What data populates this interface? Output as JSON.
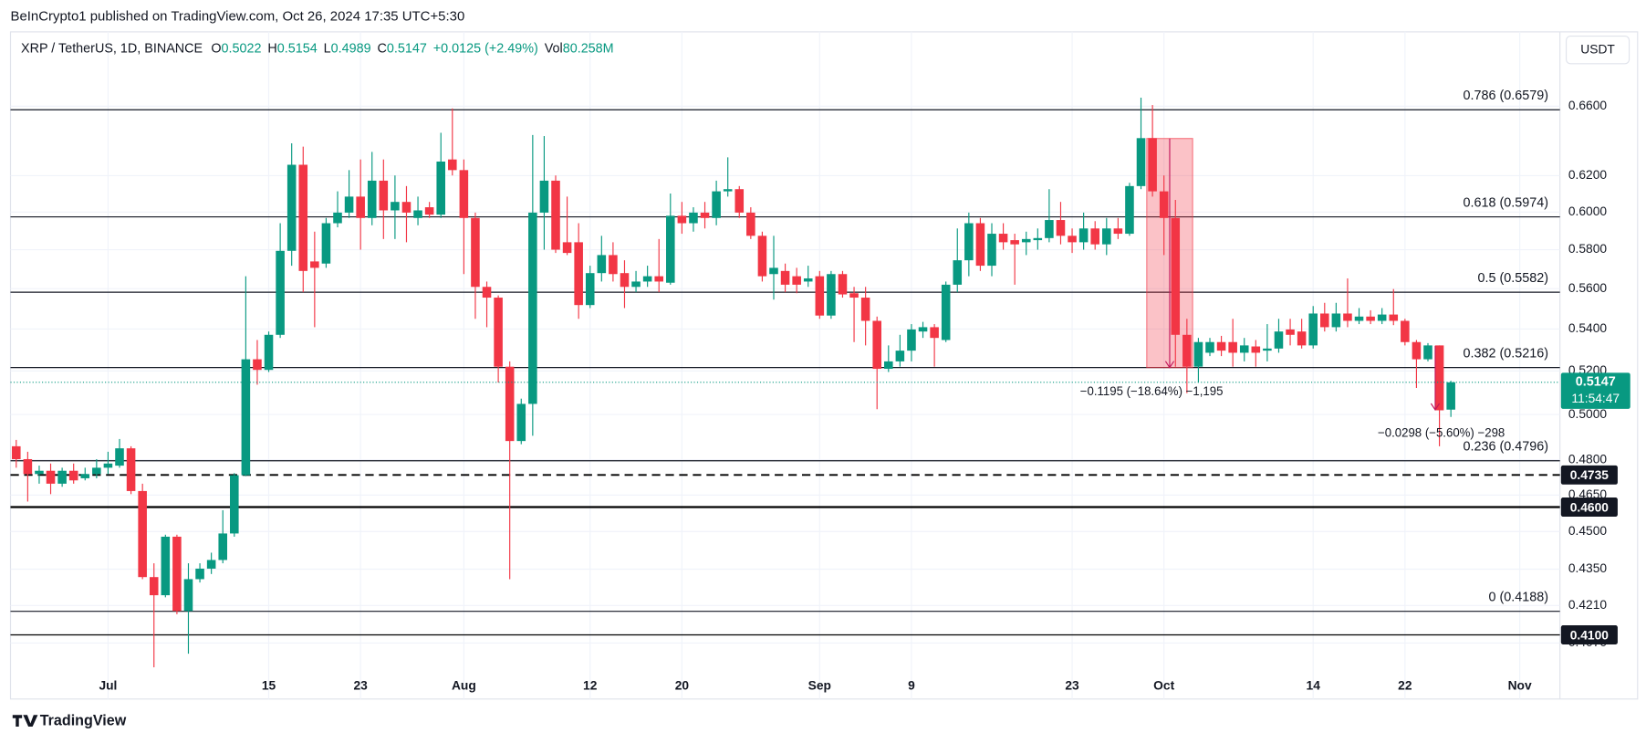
{
  "header": {
    "publisher": "BeInCrypto1 published on TradingView.com, Oct 26, 2024 17:35 UTC+5:30"
  },
  "chart_data": {
    "type": "candlestick",
    "title": "XRP / TetherUS, 1D, BINANCE",
    "legend_labels": {
      "open": "O",
      "high": "H",
      "low": "L",
      "close": "C",
      "volume": "Vol"
    },
    "change": "+0.0125 (+2.49%)",
    "volume": "80.258M",
    "currency": "USDT",
    "countdown": "11:54:47",
    "categories": [
      null,
      null,
      null,
      null,
      null,
      null,
      null,
      null,
      "Jul",
      null,
      null,
      null,
      null,
      null,
      null,
      null,
      null,
      null,
      null,
      null,
      null,
      null,
      "15",
      null,
      null,
      null,
      null,
      null,
      null,
      null,
      "23",
      null,
      null,
      null,
      null,
      null,
      null,
      null,
      null,
      "Aug",
      null,
      null,
      null,
      null,
      null,
      null,
      null,
      null,
      null,
      null,
      "12",
      null,
      null,
      null,
      null,
      null,
      null,
      null,
      "20",
      null,
      null,
      null,
      null,
      null,
      null,
      null,
      null,
      null,
      null,
      null,
      "Sep",
      null,
      null,
      null,
      null,
      null,
      null,
      null,
      "9",
      null,
      null,
      null,
      null,
      null,
      null,
      null,
      null,
      null,
      null,
      null,
      null,
      null,
      "23",
      null,
      null,
      null,
      null,
      null,
      null,
      null,
      "Oct",
      null,
      null,
      null,
      null,
      null,
      null,
      null,
      null,
      null,
      null,
      null,
      null,
      "14",
      null,
      null,
      null,
      null,
      null,
      null,
      null,
      "22",
      null,
      null,
      null,
      null,
      null,
      null,
      null,
      null,
      null,
      "Nov",
      null,
      null,
      null
    ],
    "open": [
      0.4859,
      0.4803,
      0.4739,
      0.4753,
      0.4698,
      0.4753,
      0.4721,
      0.4739,
      0.4766,
      0.4775,
      0.485,
      0.4667,
      0.4319,
      0.4249,
      0.4479,
      0.4189,
      0.4311,
      0.4352,
      0.4386,
      0.4492,
      0.4734,
      0.5255,
      0.5205,
      0.5372,
      0.5794,
      0.6261,
      0.5739,
      0.5728,
      0.594,
      0.5997,
      0.6084,
      0.5968,
      0.6172,
      0.6009,
      0.6055,
      0.5968,
      0.6026,
      0.5986,
      0.6291,
      0.6231,
      0.5968,
      0.5609,
      0.5555,
      0.522,
      0.4882,
      0.5048,
      0.5997,
      0.6172,
      0.5839,
      0.5839,
      0.5518,
      0.5679,
      0.5772,
      0.5679,
      0.5609,
      0.5636,
      0.5663,
      0.563,
      0.598,
      0.594,
      0.5997,
      0.5968,
      0.6113,
      0.6125,
      0.5997,
      0.5873,
      0.5674,
      0.569,
      0.5663,
      0.5636,
      0.5663,
      0.5466,
      0.5674,
      0.5577,
      0.5555,
      0.544,
      0.521,
      0.5245,
      0.5296,
      0.5388,
      0.5409,
      0.5347,
      0.562,
      0.5745,
      0.594,
      0.5717,
      0.5884,
      0.585,
      0.5839,
      0.585,
      0.5861,
      0.5957,
      0.5873,
      0.5839,
      0.5912,
      0.5828,
      0.5912,
      0.5884,
      0.6142,
      0.6413,
      0.6113,
      0.5968,
      0.5372,
      0.522,
      0.5286,
      0.5337,
      0.5337,
      0.5286,
      0.5316,
      0.5296,
      0.5306,
      0.5398,
      0.5388,
      0.5321,
      0.5476,
      0.5409,
      0.5476,
      0.544,
      0.5461,
      0.544,
      0.5471,
      0.544,
      0.5337,
      0.5255,
      0.5321,
      0.5022,
      null,
      null,
      null,
      null,
      null,
      null,
      null,
      null,
      null
    ],
    "high": [
      0.4887,
      0.4835,
      0.4775,
      0.4784,
      0.4766,
      0.4784,
      0.4766,
      0.4803,
      0.4835,
      0.4891,
      0.4859,
      0.4698,
      0.4373,
      0.4487,
      0.4487,
      0.4373,
      0.4373,
      0.4415,
      0.4587,
      0.4743,
      0.5663,
      0.5347,
      0.5388,
      0.594,
      0.6383,
      0.6364,
      0.5895,
      0.5968,
      0.6113,
      0.6231,
      0.6291,
      0.6334,
      0.6291,
      0.6201,
      0.6142,
      0.6084,
      0.6055,
      0.6444,
      0.6587,
      0.6291,
      0.5997,
      0.5636,
      0.5566,
      0.5245,
      0.5072,
      0.6431,
      0.6425,
      0.6201,
      0.6084,
      0.594,
      0.5717,
      0.5873,
      0.5839,
      0.5745,
      0.569,
      0.5717,
      0.5856,
      0.6101,
      0.6055,
      0.6026,
      0.6055,
      0.6172,
      0.6303,
      0.6142,
      0.6026,
      0.5895,
      0.5873,
      0.5728,
      0.5706,
      0.5717,
      0.569,
      0.569,
      0.569,
      0.5609,
      0.5609,
      0.5461,
      0.5321,
      0.5372,
      0.5424,
      0.5435,
      0.5424,
      0.5636,
      0.5912,
      0.5997,
      0.5968,
      0.594,
      0.594,
      0.5884,
      0.5895,
      0.5912,
      0.6125,
      0.6055,
      0.5912,
      0.5997,
      0.5951,
      0.5968,
      0.5968,
      0.616,
      0.6651,
      0.6607,
      0.6201,
      0.6066,
      0.545,
      0.5357,
      0.5357,
      0.5367,
      0.545,
      0.5357,
      0.5347,
      0.5424,
      0.545,
      0.545,
      0.545,
      0.5513,
      0.5529,
      0.5529,
      0.5652,
      0.5503,
      0.5492,
      0.5503,
      0.5598,
      0.545,
      0.5347,
      0.5332,
      0.5321,
      0.5154,
      null,
      null,
      null,
      null,
      null,
      null,
      null,
      null,
      null
    ],
    "low": [
      0.4766,
      0.4623,
      0.4698,
      0.4654,
      0.4685,
      0.4698,
      0.4712,
      0.4721,
      0.4739,
      0.4766,
      0.4654,
      0.4311,
      0.3982,
      0.4241,
      0.4177,
      0.4031,
      0.4298,
      0.4331,
      0.4373,
      0.4479,
      0.473,
      0.5136,
      0.5195,
      0.5357,
      0.5717,
      0.5582,
      0.5409,
      0.5706,
      0.5918,
      0.5968,
      0.58,
      0.5929,
      0.5856,
      0.5856,
      0.5839,
      0.5929,
      0.5968,
      0.5968,
      0.6201,
      0.5674,
      0.545,
      0.5409,
      0.5146,
      0.4311,
      0.4868,
      0.4905,
      0.58,
      0.5783,
      0.5772,
      0.545,
      0.5503,
      0.5636,
      0.5636,
      0.5503,
      0.5582,
      0.5609,
      0.5582,
      0.562,
      0.5884,
      0.5895,
      0.5912,
      0.5929,
      0.6084,
      0.5968,
      0.5856,
      0.5636,
      0.5545,
      0.5582,
      0.5577,
      0.5609,
      0.545,
      0.545,
      0.5555,
      0.5337,
      0.5321,
      0.5024,
      0.5195,
      0.522,
      0.5245,
      0.5357,
      0.522,
      0.5337,
      0.5582,
      0.5663,
      0.569,
      0.5663,
      0.58,
      0.562,
      0.5772,
      0.58,
      0.5839,
      0.5828,
      0.5783,
      0.58,
      0.58,
      0.5772,
      0.5856,
      0.5873,
      0.6125,
      0.6084,
      0.5772,
      0.522,
      0.5097,
      0.5146,
      0.527,
      0.527,
      0.522,
      0.5245,
      0.522,
      0.5245,
      0.5286,
      0.5321,
      0.5306,
      0.5306,
      0.5388,
      0.5388,
      0.5409,
      0.5424,
      0.5424,
      0.5424,
      0.5419,
      0.5321,
      0.5121,
      0.5245,
      0.4859,
      0.4989,
      null,
      null,
      null,
      null,
      null,
      null,
      null,
      null,
      null
    ],
    "close": [
      0.4803,
      0.4739,
      0.4753,
      0.4698,
      0.4753,
      0.4712,
      0.4739,
      0.4766,
      0.4784,
      0.485,
      0.4667,
      0.4319,
      0.4249,
      0.4479,
      0.4189,
      0.4311,
      0.4352,
      0.4386,
      0.4492,
      0.4734,
      0.5255,
      0.5205,
      0.5372,
      0.5794,
      0.6261,
      0.569,
      0.5706,
      0.594,
      0.5997,
      0.6084,
      0.5968,
      0.6172,
      0.6009,
      0.6055,
      0.5997,
      0.6009,
      0.5986,
      0.6279,
      0.6231,
      0.5968,
      0.5609,
      0.5555,
      0.522,
      0.4882,
      0.5048,
      0.5997,
      0.6172,
      0.58,
      0.5783,
      0.5518,
      0.5679,
      0.5772,
      0.5674,
      0.5609,
      0.5636,
      0.5663,
      0.5636,
      0.598,
      0.594,
      0.5997,
      0.5968,
      0.6113,
      0.6125,
      0.5997,
      0.5873,
      0.5663,
      0.5706,
      0.562,
      0.562,
      0.5652,
      0.5466,
      0.5674,
      0.5571,
      0.5555,
      0.544,
      0.521,
      0.5245,
      0.5296,
      0.5398,
      0.5409,
      0.5357,
      0.562,
      0.5745,
      0.594,
      0.5717,
      0.5884,
      0.5839,
      0.5828,
      0.5856,
      0.5861,
      0.5957,
      0.5873,
      0.5839,
      0.5912,
      0.5828,
      0.5912,
      0.5884,
      0.6142,
      0.6413,
      0.6113,
      0.5968,
      0.5372,
      0.522,
      0.5337,
      0.5337,
      0.5296,
      0.5286,
      0.5321,
      0.5286,
      0.5306,
      0.5388,
      0.5372,
      0.5321,
      0.5476,
      0.5409,
      0.5476,
      0.544,
      0.5461,
      0.544,
      0.5471,
      0.544,
      0.5337,
      0.5255,
      0.5321,
      0.5019,
      0.5147,
      null,
      null,
      null,
      null,
      null,
      null,
      null,
      null,
      null
    ],
    "colors": {
      "up": "#089981",
      "down": "#f23645"
    },
    "log_scale": true,
    "grid": true,
    "ylim": [
      0.3956,
      0.7057
    ],
    "yticks": [
      {
        "value": 0.66,
        "label": "0.6600"
      },
      {
        "value": 0.62,
        "label": "0.6200"
      },
      {
        "value": 0.6,
        "label": "0.6000"
      },
      {
        "value": 0.58,
        "label": "0.5800"
      },
      {
        "value": 0.56,
        "label": "0.5600"
      },
      {
        "value": 0.54,
        "label": "0.5400"
      },
      {
        "value": 0.52,
        "label": "0.5200"
      },
      {
        "value": 0.5,
        "label": "0.5000"
      },
      {
        "value": 0.48,
        "label": "0.4800"
      },
      {
        "value": 0.465,
        "label": "0.4650"
      },
      {
        "value": 0.45,
        "label": "0.4500"
      },
      {
        "value": 0.435,
        "label": "0.4350"
      },
      {
        "value": 0.421,
        "label": "0.4210"
      },
      {
        "value": 0.407,
        "label": "0.4070"
      }
    ],
    "levels": [
      {
        "label": "0.786 (0.6579)",
        "value": 0.6579
      },
      {
        "label": "0.618 (0.5974)",
        "value": 0.5974
      },
      {
        "label": "0.5 (0.5582)",
        "value": 0.5582
      },
      {
        "label": "0.382 (0.5216)",
        "value": 0.5216
      },
      {
        "label": "0.236 (0.4796)",
        "value": 0.4796
      },
      {
        "label": "0 (0.4188)",
        "value": 0.4188
      }
    ],
    "price_lines": [
      {
        "value": 0.4735,
        "style": "dashed"
      },
      {
        "value": 0.46,
        "label": "0.4600",
        "style": "thick"
      },
      {
        "value": 0.41,
        "label": "0.4100",
        "style": "solid"
      }
    ],
    "measures": [
      {
        "label": "−0.1195 (−18.64%) −1,195",
        "from": 0.6411,
        "to": 0.5216
      },
      {
        "label": "−0.0298 (−5.60%) −298",
        "from": 0.5319,
        "to": 0.5021
      }
    ]
  },
  "footer": {
    "brand": "TradingView"
  }
}
